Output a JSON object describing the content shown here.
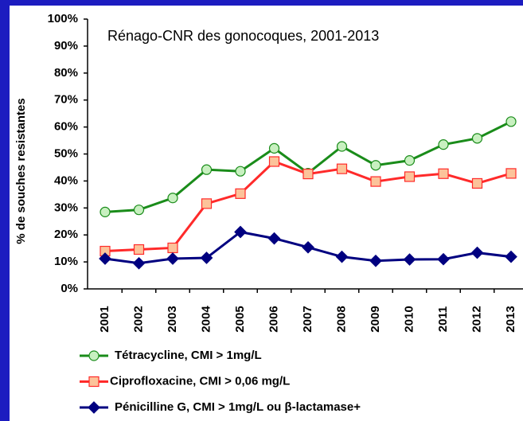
{
  "chart_data": {
    "type": "line",
    "annotation": "Rénago-CNR des gonocoques, 2001-2013",
    "y_label": "% de souches resistantes",
    "categories": [
      "2001",
      "2002",
      "2003",
      "2004",
      "2005",
      "2006",
      "2007",
      "2008",
      "2009",
      "2010",
      "2011",
      "2012",
      "2013"
    ],
    "series": [
      {
        "name": "Tétracycline, CMI > 1mg/L",
        "color": "#1a8c1a",
        "marker": "circle",
        "marker_fill": "#c8f0c0",
        "values": [
          28.5,
          29.3,
          33.7,
          44.2,
          43.6,
          52.1,
          42.9,
          52.8,
          45.8,
          47.6,
          53.5,
          55.8,
          62.0
        ]
      },
      {
        "name": "Ciprofloxacine, CMI > 0,06 mg/L",
        "color": "#ff2a2a",
        "marker": "square",
        "marker_fill": "#fcc39a",
        "values": [
          14.0,
          14.6,
          15.2,
          31.6,
          35.3,
          47.2,
          42.6,
          44.5,
          39.8,
          41.6,
          42.7,
          39.1,
          42.8
        ]
      },
      {
        "name": "Pénicilline G, CMI > 1mg/L ou β-lactamase+",
        "color": "#000080",
        "marker": "diamond",
        "marker_fill": "#000080",
        "values": [
          11.2,
          9.5,
          11.2,
          11.5,
          21.1,
          18.7,
          15.4,
          11.9,
          10.4,
          10.9,
          11.0,
          13.4,
          11.9
        ]
      }
    ],
    "ylim": [
      0,
      100
    ],
    "yticks": [
      {
        "value": 0,
        "label": "0%"
      },
      {
        "value": 10,
        "label": "10%"
      },
      {
        "value": 20,
        "label": "20%"
      },
      {
        "value": 30,
        "label": "30%"
      },
      {
        "value": 40,
        "label": "40%"
      },
      {
        "value": 50,
        "label": "50%"
      },
      {
        "value": 60,
        "label": "60%"
      },
      {
        "value": 70,
        "label": "70%"
      },
      {
        "value": 80,
        "label": "80%"
      },
      {
        "value": 90,
        "label": "90%"
      },
      {
        "value": 100,
        "label": "100%"
      }
    ],
    "grid": false
  }
}
